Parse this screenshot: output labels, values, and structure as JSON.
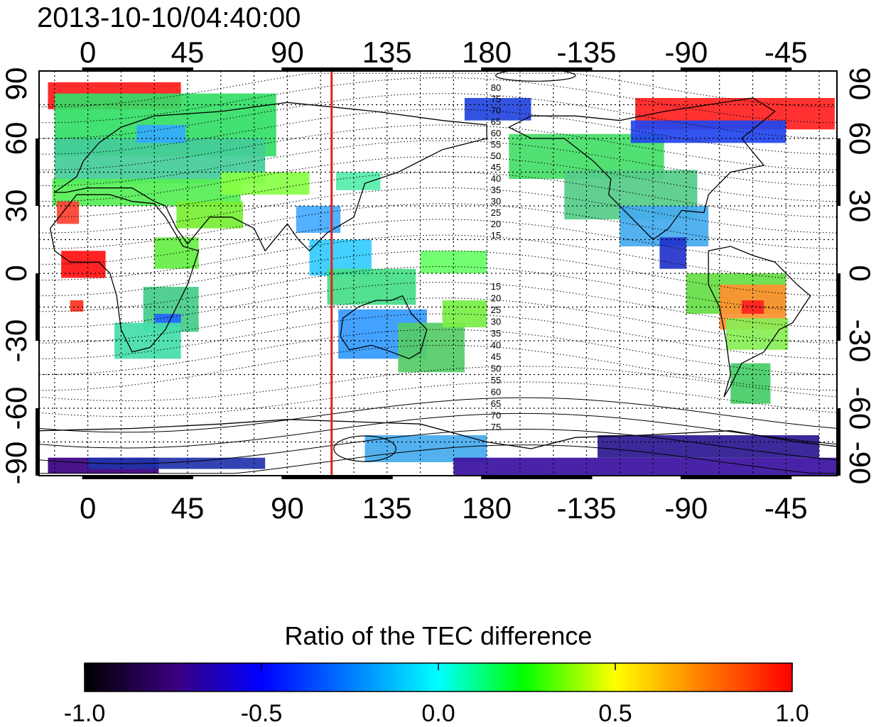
{
  "title": "2013-10-10/04:40:00",
  "map": {
    "projection": "equirectangular",
    "lon_range": [
      -22,
      338
    ],
    "lat_range": [
      -90,
      90
    ],
    "top_lon_ticks": [
      "0",
      "45",
      "90",
      "135",
      "180",
      "-135",
      "-90",
      "-45"
    ],
    "bottom_lon_ticks": [
      "0",
      "45",
      "90",
      "135",
      "180",
      "-135",
      "-90",
      "-45"
    ],
    "left_lat_ticks": [
      "90",
      "60",
      "30",
      "0",
      "-30",
      "-60",
      "-90"
    ],
    "right_lat_ticks": [
      "90",
      "60",
      "30",
      "0",
      "-30",
      "-60",
      "-90"
    ],
    "grid": "dotted every 15 degrees",
    "meridian_marker": {
      "lon": 110,
      "color": "#e02020"
    },
    "contour_labels_north": [
      "80",
      "75",
      "70",
      "65",
      "60",
      "55",
      "50",
      "45",
      "40",
      "35",
      "30",
      "25",
      "20",
      "15"
    ],
    "contour_labels_south": [
      "15",
      "20",
      "25",
      "30",
      "35",
      "40",
      "45",
      "50",
      "55",
      "60",
      "65",
      "70",
      "75"
    ]
  },
  "colorbar": {
    "title": "Ratio of the TEC difference",
    "min": -1.0,
    "max": 1.0,
    "tick_labels": [
      "-1.0",
      "-0.5",
      "0.0",
      "0.5",
      "1.0"
    ],
    "colors": [
      "#000000",
      "#3a0080",
      "#0000ff",
      "#00ffff",
      "#00ff00",
      "#ffff00",
      "#ff0000"
    ]
  }
}
